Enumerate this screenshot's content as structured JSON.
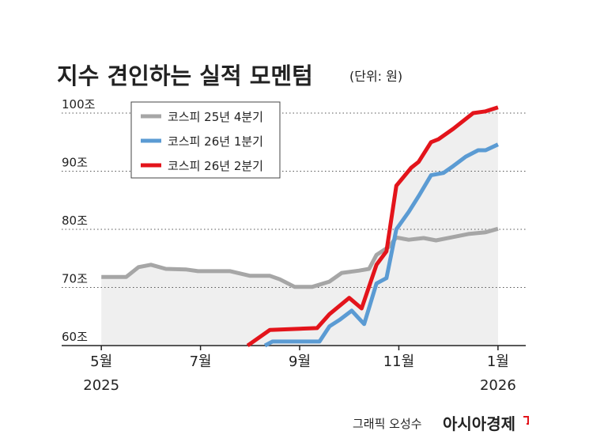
{
  "chart_data": {
    "type": "line",
    "title": "지수 견인하는 실적 모멘텀",
    "subtitle": "(단위: 원)",
    "credit": "그래픽 오성수",
    "source": "아시아경제",
    "xlim": [
      4.2,
      13.56
    ],
    "xticks": [
      {
        "value": 5,
        "label": "5월",
        "year": "2025"
      },
      {
        "value": 7,
        "label": "7월"
      },
      {
        "value": 9,
        "label": "9월"
      },
      {
        "value": 11,
        "label": "11월"
      },
      {
        "value": 13,
        "label": "1월",
        "year": "2026"
      }
    ],
    "ylim": [
      60,
      102
    ],
    "yticks": [
      {
        "value": 60,
        "label": "60조"
      },
      {
        "value": 70,
        "label": "70조"
      },
      {
        "value": 80,
        "label": "80조"
      },
      {
        "value": 90,
        "label": "90조"
      },
      {
        "value": 100,
        "label": "100조"
      }
    ],
    "grid": true,
    "legend": "upper left",
    "series": [
      {
        "name": "코스피 25년 4분기",
        "color": "#a6a6a6",
        "x": [
          5.0,
          5.5,
          5.75,
          6.0,
          6.3,
          6.7,
          6.95,
          7.6,
          8.0,
          8.4,
          8.6,
          8.9,
          9.25,
          9.6,
          9.85,
          10.2,
          10.4,
          10.55,
          10.8,
          10.95,
          11.2,
          11.5,
          11.75,
          12.05,
          12.4,
          12.75,
          13.0
        ],
        "values": [
          71.8,
          71.8,
          73.5,
          73.9,
          73.2,
          73.1,
          72.8,
          72.8,
          72.0,
          72.0,
          71.4,
          70.1,
          70.1,
          71.0,
          72.5,
          72.9,
          73.2,
          75.6,
          77.0,
          78.6,
          78.2,
          78.5,
          78.1,
          78.6,
          79.2,
          79.5,
          80.1
        ]
      },
      {
        "name": "코스피 26년 1분기",
        "color": "#5b9bd3",
        "x": [
          8.3,
          8.45,
          9.35,
          9.4,
          9.6,
          9.8,
          10.05,
          10.3,
          10.55,
          10.75,
          10.95,
          11.2,
          11.4,
          11.65,
          11.9,
          12.1,
          12.35,
          12.6,
          12.75,
          13.0
        ],
        "values": [
          60,
          60.7,
          60.7,
          60.7,
          63.3,
          64.4,
          66.0,
          63.7,
          70.7,
          71.6,
          80.0,
          83.0,
          85.7,
          89.3,
          89.7,
          90.9,
          92.5,
          93.6,
          93.6,
          94.6
        ]
      },
      {
        "name": "코스피 26년 2분기",
        "color": "#e3141b",
        "x": [
          7.95,
          8.4,
          9.35,
          9.6,
          10.0,
          10.25,
          10.55,
          10.75,
          10.95,
          11.25,
          11.4,
          11.65,
          11.8,
          12.1,
          12.5,
          12.75,
          13.0
        ],
        "values": [
          60,
          62.7,
          63.0,
          65.4,
          68.2,
          66.4,
          73.9,
          76.2,
          87.5,
          90.6,
          91.6,
          95.0,
          95.5,
          97.3,
          100.0,
          100.3,
          101.0
        ]
      }
    ]
  }
}
